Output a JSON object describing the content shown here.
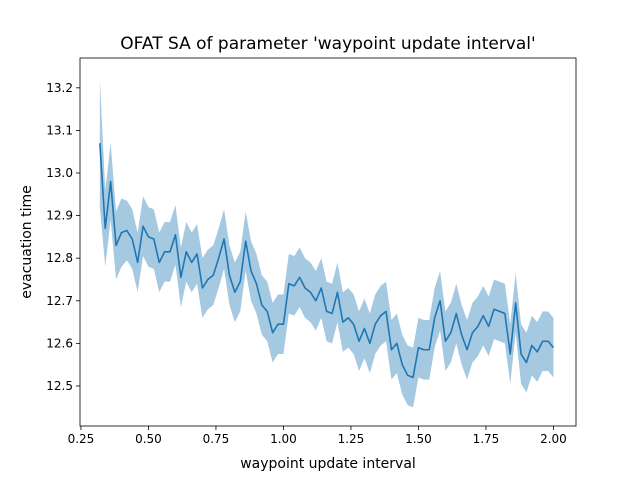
{
  "chart_data": {
    "type": "line",
    "title": "OFAT SA of parameter 'waypoint update interval'",
    "xlabel": "waypoint update interval",
    "ylabel": "evacuation time",
    "x": [
      0.32,
      0.34,
      0.36,
      0.38,
      0.4,
      0.42,
      0.44,
      0.46,
      0.48,
      0.5,
      0.52,
      0.54,
      0.56,
      0.58,
      0.6,
      0.62,
      0.64,
      0.66,
      0.68,
      0.7,
      0.72,
      0.74,
      0.76,
      0.78,
      0.8,
      0.82,
      0.84,
      0.86,
      0.88,
      0.9,
      0.92,
      0.94,
      0.96,
      0.98,
      1.0,
      1.02,
      1.04,
      1.06,
      1.08,
      1.1,
      1.12,
      1.14,
      1.16,
      1.18,
      1.2,
      1.22,
      1.24,
      1.26,
      1.28,
      1.3,
      1.32,
      1.34,
      1.36,
      1.38,
      1.4,
      1.42,
      1.44,
      1.46,
      1.48,
      1.5,
      1.52,
      1.54,
      1.56,
      1.58,
      1.6,
      1.62,
      1.64,
      1.66,
      1.68,
      1.7,
      1.72,
      1.74,
      1.76,
      1.78,
      1.8,
      1.82,
      1.84,
      1.86,
      1.88,
      1.9,
      1.92,
      1.94,
      1.96,
      1.98,
      2.0
    ],
    "series": [
      {
        "color": "#1f77b4",
        "values": [
          13.07,
          12.87,
          12.98,
          12.83,
          12.86,
          12.865,
          12.845,
          12.79,
          12.875,
          12.85,
          12.845,
          12.79,
          12.815,
          12.815,
          12.855,
          12.755,
          12.815,
          12.79,
          12.81,
          12.73,
          12.75,
          12.76,
          12.8,
          12.845,
          12.76,
          12.72,
          12.745,
          12.84,
          12.77,
          12.74,
          12.69,
          12.675,
          12.625,
          12.645,
          12.645,
          12.74,
          12.735,
          12.755,
          12.73,
          12.72,
          12.7,
          12.73,
          12.675,
          12.67,
          12.72,
          12.65,
          12.66,
          12.645,
          12.605,
          12.635,
          12.6,
          12.645,
          12.665,
          12.675,
          12.585,
          12.6,
          12.55,
          12.525,
          12.52,
          12.59,
          12.585,
          12.585,
          12.66,
          12.7,
          12.605,
          12.625,
          12.67,
          12.62,
          12.585,
          12.625,
          12.64,
          12.665,
          12.64,
          12.68,
          12.675,
          12.67,
          12.575,
          12.695,
          12.575,
          12.555,
          12.595,
          12.58,
          12.605,
          12.605,
          12.59
        ]
      }
    ],
    "band": {
      "color": "#1f77b4",
      "opacity": 0.4,
      "upper": [
        13.22,
        12.96,
        13.07,
        12.91,
        12.94,
        12.935,
        12.915,
        12.86,
        12.945,
        12.92,
        12.915,
        12.86,
        12.885,
        12.885,
        12.925,
        12.825,
        12.885,
        12.86,
        12.88,
        12.8,
        12.82,
        12.83,
        12.87,
        12.915,
        12.83,
        12.79,
        12.815,
        12.91,
        12.84,
        12.81,
        12.76,
        12.745,
        12.695,
        12.715,
        12.715,
        12.81,
        12.805,
        12.825,
        12.8,
        12.79,
        12.77,
        12.8,
        12.745,
        12.74,
        12.79,
        12.72,
        12.73,
        12.715,
        12.675,
        12.705,
        12.67,
        12.715,
        12.735,
        12.745,
        12.655,
        12.67,
        12.62,
        12.595,
        12.59,
        12.66,
        12.655,
        12.655,
        12.73,
        12.77,
        12.675,
        12.695,
        12.74,
        12.69,
        12.655,
        12.695,
        12.71,
        12.735,
        12.71,
        12.75,
        12.745,
        12.74,
        12.645,
        12.765,
        12.645,
        12.625,
        12.665,
        12.65,
        12.675,
        12.675,
        12.66
      ],
      "lower": [
        12.92,
        12.78,
        12.89,
        12.75,
        12.78,
        12.795,
        12.775,
        12.72,
        12.805,
        12.78,
        12.775,
        12.72,
        12.745,
        12.745,
        12.785,
        12.685,
        12.745,
        12.72,
        12.74,
        12.66,
        12.68,
        12.69,
        12.73,
        12.775,
        12.69,
        12.65,
        12.675,
        12.77,
        12.7,
        12.67,
        12.62,
        12.605,
        12.555,
        12.575,
        12.575,
        12.67,
        12.665,
        12.685,
        12.66,
        12.65,
        12.63,
        12.66,
        12.605,
        12.6,
        12.65,
        12.58,
        12.59,
        12.575,
        12.535,
        12.565,
        12.53,
        12.575,
        12.595,
        12.605,
        12.515,
        12.53,
        12.48,
        12.455,
        12.45,
        12.52,
        12.515,
        12.515,
        12.59,
        12.63,
        12.535,
        12.555,
        12.6,
        12.55,
        12.515,
        12.555,
        12.57,
        12.595,
        12.57,
        12.61,
        12.605,
        12.6,
        12.505,
        12.625,
        12.505,
        12.485,
        12.525,
        12.51,
        12.535,
        12.535,
        12.52
      ]
    },
    "xlim": [
      0.2465,
      2.0835
    ],
    "ylim": [
      12.406,
      13.27
    ],
    "xticks": [
      {
        "value": 0.25,
        "label": "0.25"
      },
      {
        "value": 0.5,
        "label": "0.50"
      },
      {
        "value": 0.75,
        "label": "0.75"
      },
      {
        "value": 1,
        "label": "1.00"
      },
      {
        "value": 1.25,
        "label": "1.25"
      },
      {
        "value": 1.5,
        "label": "1.50"
      },
      {
        "value": 1.75,
        "label": "1.75"
      },
      {
        "value": 2,
        "label": "2.00"
      }
    ],
    "yticks": [
      12.5,
      12.6,
      12.7,
      12.8,
      12.9,
      {
        "value": 13,
        "label": "13.0"
      },
      13.1,
      13.2
    ]
  }
}
